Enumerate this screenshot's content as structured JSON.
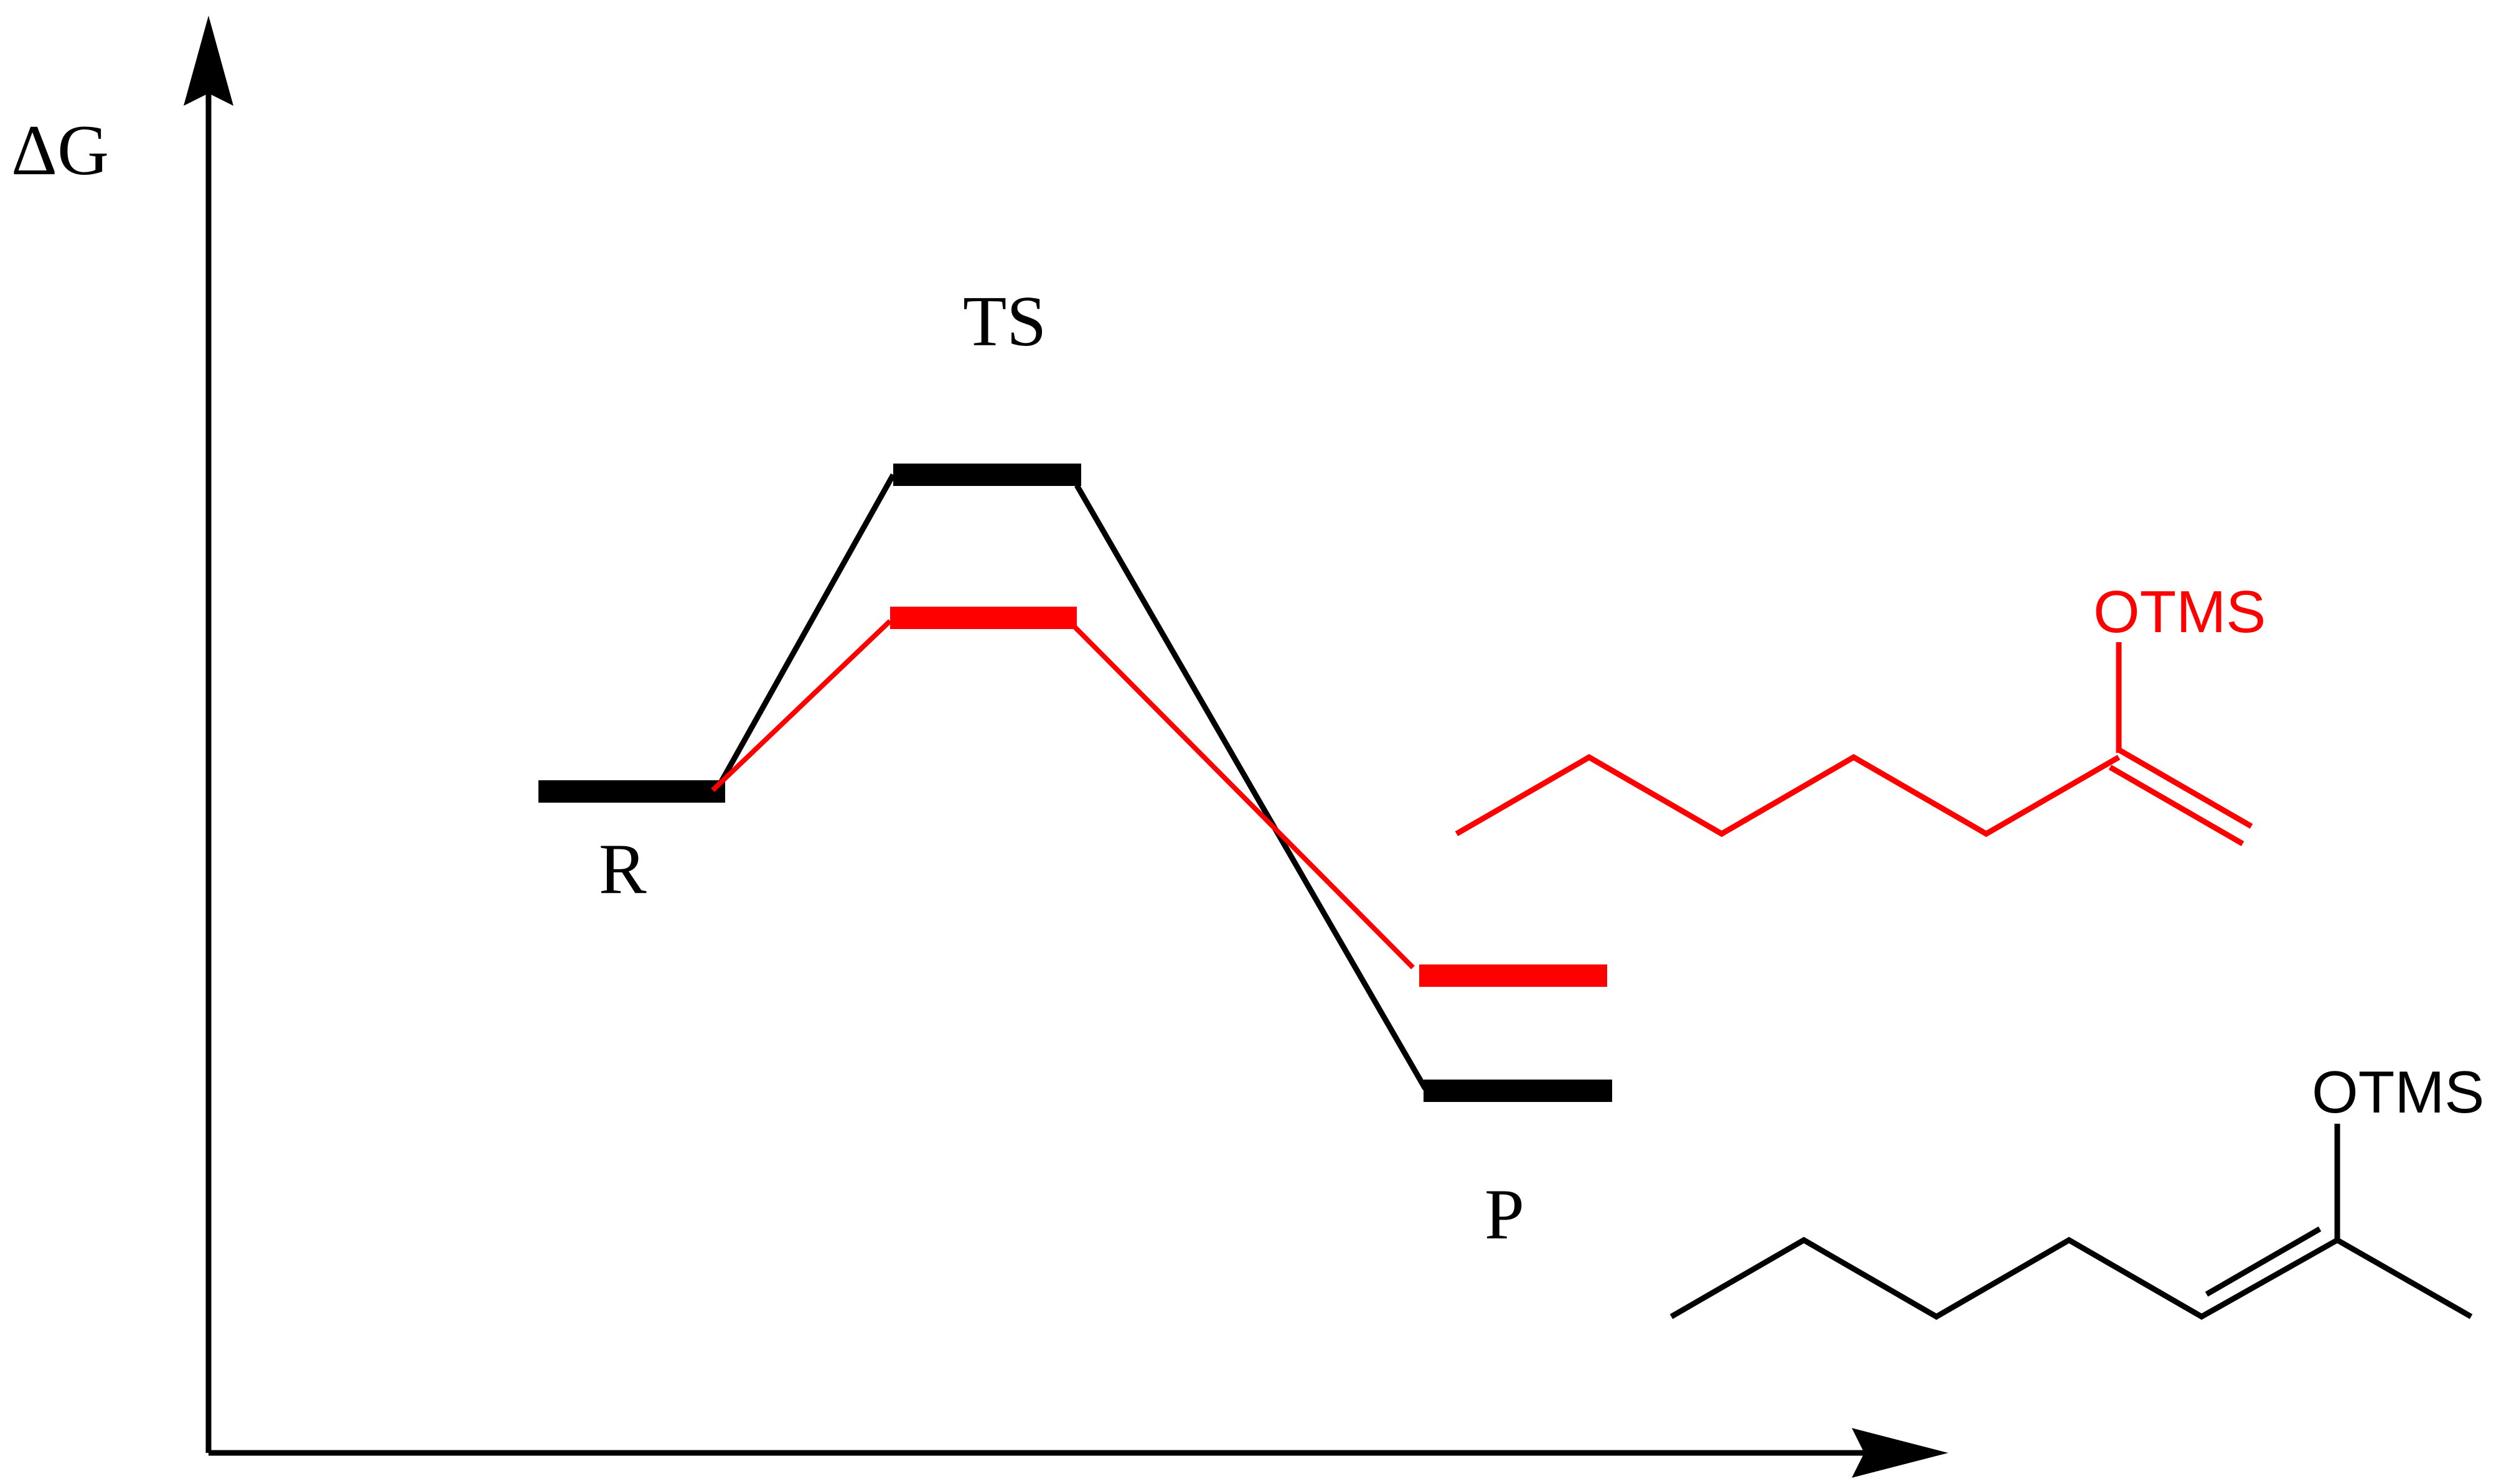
{
  "axes": {
    "y_label": "ΔG"
  },
  "states": {
    "reactant": "R",
    "transition_state": "TS",
    "product": "P"
  },
  "molecules": {
    "red_product": {
      "substituent": "OTMS"
    },
    "black_product": {
      "substituent": "OTMS"
    }
  },
  "colors": {
    "black_path": "#000000",
    "red_path": "#ff0000"
  }
}
